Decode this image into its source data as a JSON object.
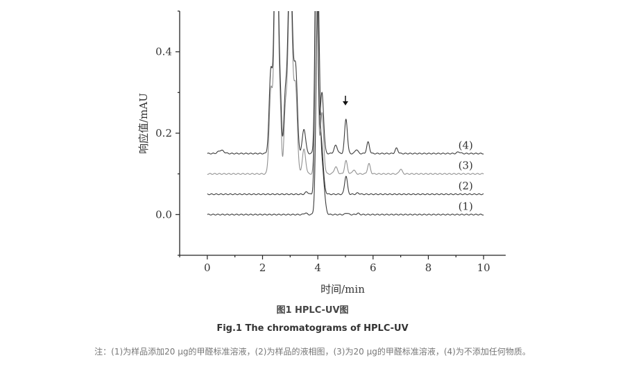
{
  "chart_data": {
    "type": "line",
    "xlabel": "时间/min",
    "ylabel": "响应值/mAU",
    "xlim": [
      -1,
      10.8
    ],
    "ylim": [
      -0.1,
      0.5
    ],
    "x_ticks": [
      0,
      2,
      4,
      6,
      8,
      10
    ],
    "x_tick_labels": [
      "0",
      "2",
      "4",
      "6",
      "8",
      "10"
    ],
    "y_ticks": [
      0.0,
      0.2,
      0.4
    ],
    "y_tick_labels": [
      "0.0",
      "0.2",
      "0.4"
    ],
    "grid": false,
    "legend": "labels beside traces at right end",
    "arrow_annotation_x": 5.0,
    "series": [
      {
        "name": "(1)",
        "color": "#3a3a3a",
        "baseline": 0.0,
        "x_range": [
          0,
          10
        ],
        "peaks": [
          [
            3.55,
            0.004,
            0.05
          ],
          [
            4.0,
            0.55,
            0.06
          ],
          [
            4.15,
            0.12,
            0.08
          ],
          [
            5.05,
            0.004,
            0.05
          ],
          [
            5.45,
            0.003,
            0.05
          ]
        ]
      },
      {
        "name": "(2)",
        "color": "#3a3a3a",
        "baseline": 0.05,
        "x_range": [
          0,
          10
        ],
        "peaks": [
          [
            3.6,
            0.006,
            0.05
          ],
          [
            3.95,
            0.6,
            0.05
          ],
          [
            4.1,
            0.15,
            0.08
          ],
          [
            5.02,
            0.045,
            0.05
          ],
          [
            5.45,
            0.003,
            0.05
          ]
        ]
      },
      {
        "name": "(3)",
        "color": "#909090",
        "baseline": 0.1,
        "x_range": [
          0,
          10
        ],
        "peaks": [
          [
            2.3,
            0.2,
            0.06
          ],
          [
            2.5,
            0.7,
            0.07
          ],
          [
            2.65,
            0.1,
            0.04
          ],
          [
            2.82,
            0.13,
            0.05
          ],
          [
            3.0,
            0.5,
            0.08
          ],
          [
            3.2,
            0.2,
            0.06
          ],
          [
            3.5,
            0.06,
            0.06
          ],
          [
            3.95,
            0.6,
            0.05
          ],
          [
            4.15,
            0.15,
            0.06
          ],
          [
            4.65,
            0.017,
            0.06
          ],
          [
            5.02,
            0.032,
            0.05
          ],
          [
            5.3,
            0.01,
            0.05
          ],
          [
            5.85,
            0.025,
            0.05
          ],
          [
            7.0,
            0.012,
            0.05
          ]
        ]
      },
      {
        "name": "(4)",
        "color": "#3a3a3a",
        "baseline": 0.15,
        "x_range": [
          0,
          10
        ],
        "peaks": [
          [
            0.5,
            0.008,
            0.1
          ],
          [
            2.3,
            0.2,
            0.06
          ],
          [
            2.5,
            0.7,
            0.07
          ],
          [
            2.65,
            0.1,
            0.04
          ],
          [
            2.82,
            0.12,
            0.05
          ],
          [
            3.0,
            0.5,
            0.08
          ],
          [
            3.2,
            0.2,
            0.06
          ],
          [
            3.5,
            0.06,
            0.06
          ],
          [
            3.95,
            0.6,
            0.05
          ],
          [
            4.15,
            0.15,
            0.06
          ],
          [
            4.65,
            0.02,
            0.06
          ],
          [
            5.02,
            0.085,
            0.05
          ],
          [
            5.4,
            0.01,
            0.05
          ],
          [
            5.82,
            0.028,
            0.05
          ],
          [
            6.85,
            0.013,
            0.05
          ],
          [
            9.1,
            0.004,
            0.06
          ]
        ]
      }
    ]
  },
  "captions": {
    "cn_title": "图1 HPLC-UV图",
    "en_title": "Fig.1 The chromatograms of HPLC-UV",
    "note": "注：(1)为样品添加20 μg的甲醛标准溶液，(2)为样品的液相图，(3)为20 μg的甲醛标准溶液，(4)为不添加任何物质。"
  }
}
